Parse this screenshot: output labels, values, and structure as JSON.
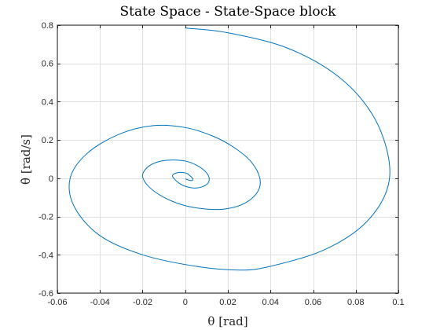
{
  "chart_data": {
    "type": "line",
    "title": "State Space - State-Space block",
    "xlabel": "θ [rad]",
    "ylabel": "θ̇ [rad/s]",
    "xlim": [
      -0.06,
      0.1
    ],
    "ylim": [
      -0.6,
      0.8
    ],
    "xticks": [
      -0.06,
      -0.04,
      -0.02,
      0,
      0.02,
      0.04,
      0.06,
      0.08,
      0.1
    ],
    "yticks": [
      -0.6,
      -0.4,
      -0.2,
      0,
      0.2,
      0.4,
      0.6,
      0.8
    ],
    "xtick_labels": [
      "-0.06",
      "-0.04",
      "-0.02",
      "0",
      "0.02",
      "0.04",
      "0.06",
      "0.08",
      "0.1"
    ],
    "ytick_labels": [
      "-0.6",
      "-0.4",
      "-0.2",
      "0",
      "0.2",
      "0.4",
      "0.6",
      "0.8"
    ],
    "grid": true,
    "series": [
      {
        "color": "#0072bd",
        "x": [
          0.0,
          0.02,
          0.048,
          0.072,
          0.088,
          0.0955,
          0.094,
          0.083,
          0.064,
          0.04,
          0.026,
          0.005,
          -0.02,
          -0.04,
          -0.052,
          -0.054,
          -0.046,
          -0.031,
          -0.015,
          0.0,
          0.013,
          0.023,
          0.031,
          0.035,
          0.034,
          0.028,
          0.019,
          0.009,
          -0.001,
          -0.01,
          -0.017,
          -0.02,
          -0.018,
          -0.013,
          -0.007,
          0.0,
          0.005,
          0.009,
          0.011,
          0.011,
          0.009,
          0.006,
          0.003,
          -0.0005,
          -0.003,
          -0.005,
          -0.006,
          -0.005,
          -0.003,
          -0.001,
          0.001,
          0.002,
          0.003,
          0.0035,
          0.0035,
          0.003,
          0.002,
          0.001,
          0.0
        ],
        "y": [
          0.785,
          0.76,
          0.68,
          0.53,
          0.33,
          0.1,
          -0.08,
          -0.25,
          -0.38,
          -0.46,
          -0.48,
          -0.46,
          -0.4,
          -0.3,
          -0.15,
          0.0,
          0.13,
          0.23,
          0.275,
          0.265,
          0.22,
          0.16,
          0.085,
          0.0,
          -0.07,
          -0.13,
          -0.16,
          -0.16,
          -0.14,
          -0.1,
          -0.045,
          0.01,
          0.055,
          0.085,
          0.095,
          0.09,
          0.07,
          0.04,
          0.01,
          -0.02,
          -0.04,
          -0.05,
          -0.05,
          -0.04,
          -0.025,
          -0.005,
          0.012,
          0.024,
          0.03,
          0.03,
          0.024,
          0.015,
          0.005,
          -0.003,
          -0.009,
          -0.012,
          -0.011,
          -0.007,
          -0.003
        ]
      }
    ]
  }
}
